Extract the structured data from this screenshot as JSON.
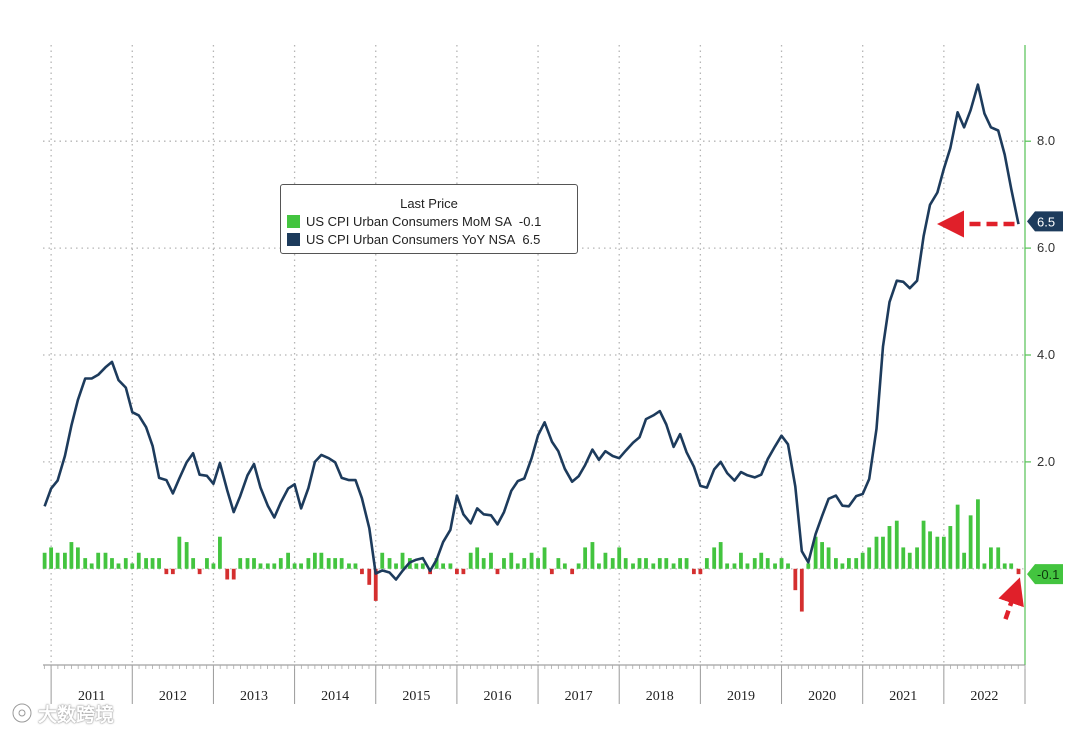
{
  "chart_data": {
    "type": "bar+line",
    "title": "",
    "legend": {
      "title": "Last Price",
      "position": "top-center",
      "entries": [
        {
          "name": "US CPI Urban Consumers MoM SA",
          "last_value": "-0.1",
          "color": "#43c43f",
          "type": "bar"
        },
        {
          "name": "US CPI Urban Consumers YoY NSA",
          "last_value": "6.5",
          "color": "#1d3b5c",
          "type": "line"
        }
      ]
    },
    "x_axis": {
      "start": 2010.9,
      "end": 2023.0,
      "year_labels": [
        "2011",
        "2012",
        "2013",
        "2014",
        "2015",
        "2016",
        "2017",
        "2018",
        "2019",
        "2020",
        "2021",
        "2022"
      ]
    },
    "y_axis": {
      "position": "right",
      "range": [
        -1.8,
        9.8
      ],
      "ticks": [
        2.0,
        4.0,
        6.0,
        8.0
      ],
      "tick_labels": [
        "2.0",
        "4.0",
        "6.0",
        "8.0"
      ],
      "grid": "dotted"
    },
    "series": [
      {
        "name": "US CPI Urban Consumers YoY NSA",
        "type": "line",
        "color": "#1d3b5c",
        "x": [
          2010.92,
          2011.0,
          2011.08,
          2011.17,
          2011.25,
          2011.33,
          2011.42,
          2011.5,
          2011.58,
          2011.67,
          2011.75,
          2011.83,
          2011.92,
          2012.0,
          2012.08,
          2012.17,
          2012.25,
          2012.33,
          2012.42,
          2012.5,
          2012.58,
          2012.67,
          2012.75,
          2012.83,
          2012.92,
          2013.0,
          2013.08,
          2013.17,
          2013.25,
          2013.33,
          2013.42,
          2013.5,
          2013.58,
          2013.67,
          2013.75,
          2013.83,
          2013.92,
          2014.0,
          2014.08,
          2014.17,
          2014.25,
          2014.33,
          2014.42,
          2014.5,
          2014.58,
          2014.67,
          2014.75,
          2014.83,
          2014.92,
          2015.0,
          2015.08,
          2015.17,
          2015.25,
          2015.33,
          2015.42,
          2015.5,
          2015.58,
          2015.67,
          2015.75,
          2015.83,
          2015.92,
          2016.0,
          2016.08,
          2016.17,
          2016.25,
          2016.33,
          2016.42,
          2016.5,
          2016.58,
          2016.67,
          2016.75,
          2016.83,
          2016.92,
          2017.0,
          2017.08,
          2017.17,
          2017.25,
          2017.33,
          2017.42,
          2017.5,
          2017.58,
          2017.67,
          2017.75,
          2017.83,
          2017.92,
          2018.0,
          2018.08,
          2018.17,
          2018.25,
          2018.33,
          2018.42,
          2018.5,
          2018.58,
          2018.67,
          2018.75,
          2018.83,
          2018.92,
          2019.0,
          2019.08,
          2019.17,
          2019.25,
          2019.33,
          2019.42,
          2019.5,
          2019.58,
          2019.67,
          2019.75,
          2019.83,
          2019.92,
          2020.0,
          2020.08,
          2020.17,
          2020.25,
          2020.33,
          2020.42,
          2020.5,
          2020.58,
          2020.67,
          2020.75,
          2020.83,
          2020.92,
          2021.0,
          2021.08,
          2021.17,
          2021.25,
          2021.33,
          2021.42,
          2021.5,
          2021.58,
          2021.67,
          2021.75,
          2021.83,
          2021.92,
          2022.0,
          2022.08,
          2022.17,
          2022.25,
          2022.33,
          2022.42,
          2022.5,
          2022.58,
          2022.67,
          2022.75,
          2022.83,
          2022.92
        ],
        "values": [
          1.17,
          1.5,
          1.65,
          2.11,
          2.68,
          3.16,
          3.56,
          3.56,
          3.63,
          3.77,
          3.87,
          3.53,
          3.39,
          2.93,
          2.87,
          2.65,
          2.3,
          1.7,
          1.66,
          1.41,
          1.69,
          1.99,
          2.16,
          1.76,
          1.74,
          1.59,
          1.98,
          1.47,
          1.06,
          1.36,
          1.75,
          1.96,
          1.52,
          1.18,
          0.96,
          1.24,
          1.5,
          1.58,
          1.13,
          1.51,
          2.0,
          2.13,
          2.07,
          1.99,
          1.7,
          1.66,
          1.66,
          1.32,
          0.76,
          -0.09,
          -0.03,
          -0.07,
          -0.2,
          -0.04,
          0.12,
          0.17,
          0.2,
          -0.04,
          0.17,
          0.5,
          0.73,
          1.37,
          1.02,
          0.85,
          1.13,
          1.02,
          1.0,
          0.83,
          1.06,
          1.46,
          1.64,
          1.69,
          2.07,
          2.5,
          2.74,
          2.38,
          2.2,
          1.87,
          1.63,
          1.73,
          1.94,
          2.23,
          2.04,
          2.2,
          2.11,
          2.07,
          2.21,
          2.36,
          2.46,
          2.8,
          2.87,
          2.95,
          2.7,
          2.28,
          2.52,
          2.18,
          1.91,
          1.55,
          1.52,
          1.86,
          2.0,
          1.79,
          1.65,
          1.81,
          1.75,
          1.71,
          1.76,
          2.05,
          2.29,
          2.49,
          2.33,
          1.54,
          0.33,
          0.12,
          0.65,
          0.99,
          1.31,
          1.37,
          1.18,
          1.17,
          1.36,
          1.4,
          1.68,
          2.62,
          4.16,
          4.99,
          5.39,
          5.37,
          5.25,
          5.39,
          6.22,
          6.81,
          7.04,
          7.48,
          7.87,
          8.54,
          8.26,
          8.58,
          9.06,
          8.52,
          8.26,
          8.2,
          7.75,
          7.11,
          6.45
        ]
      },
      {
        "name": "US CPI Urban Consumers MoM SA",
        "type": "bar",
        "color_positive": "#43c43f",
        "color_negative": "#d42f2f",
        "x": [
          2010.92,
          2011.0,
          2011.08,
          2011.17,
          2011.25,
          2011.33,
          2011.42,
          2011.5,
          2011.58,
          2011.67,
          2011.75,
          2011.83,
          2011.92,
          2012.0,
          2012.08,
          2012.17,
          2012.25,
          2012.33,
          2012.42,
          2012.5,
          2012.58,
          2012.67,
          2012.75,
          2012.83,
          2012.92,
          2013.0,
          2013.08,
          2013.17,
          2013.25,
          2013.33,
          2013.42,
          2013.5,
          2013.58,
          2013.67,
          2013.75,
          2013.83,
          2013.92,
          2014.0,
          2014.08,
          2014.17,
          2014.25,
          2014.33,
          2014.42,
          2014.5,
          2014.58,
          2014.67,
          2014.75,
          2014.83,
          2014.92,
          2015.0,
          2015.08,
          2015.17,
          2015.25,
          2015.33,
          2015.42,
          2015.5,
          2015.58,
          2015.67,
          2015.75,
          2015.83,
          2015.92,
          2016.0,
          2016.08,
          2016.17,
          2016.25,
          2016.33,
          2016.42,
          2016.5,
          2016.58,
          2016.67,
          2016.75,
          2016.83,
          2016.92,
          2017.0,
          2017.08,
          2017.17,
          2017.25,
          2017.33,
          2017.42,
          2017.5,
          2017.58,
          2017.67,
          2017.75,
          2017.83,
          2017.92,
          2018.0,
          2018.08,
          2018.17,
          2018.25,
          2018.33,
          2018.42,
          2018.5,
          2018.58,
          2018.67,
          2018.75,
          2018.83,
          2018.92,
          2019.0,
          2019.08,
          2019.17,
          2019.25,
          2019.33,
          2019.42,
          2019.5,
          2019.58,
          2019.67,
          2019.75,
          2019.83,
          2019.92,
          2020.0,
          2020.08,
          2020.17,
          2020.25,
          2020.33,
          2020.42,
          2020.5,
          2020.58,
          2020.67,
          2020.75,
          2020.83,
          2020.92,
          2021.0,
          2021.08,
          2021.17,
          2021.25,
          2021.33,
          2021.42,
          2021.5,
          2021.58,
          2021.67,
          2021.75,
          2021.83,
          2021.92,
          2022.0,
          2022.08,
          2022.17,
          2022.25,
          2022.33,
          2022.42,
          2022.5,
          2022.58,
          2022.67,
          2022.75,
          2022.83,
          2022.92
        ],
        "values": [
          0.3,
          0.4,
          0.3,
          0.3,
          0.5,
          0.4,
          0.2,
          0.1,
          0.3,
          0.3,
          0.2,
          0.1,
          0.2,
          0.1,
          0.3,
          0.2,
          0.2,
          0.2,
          -0.1,
          -0.1,
          0.6,
          0.5,
          0.2,
          -0.1,
          0.2,
          0.1,
          0.6,
          -0.2,
          -0.2,
          0.2,
          0.2,
          0.2,
          0.1,
          0.1,
          0.1,
          0.2,
          0.3,
          0.1,
          0.1,
          0.2,
          0.3,
          0.3,
          0.2,
          0.2,
          0.2,
          0.1,
          0.1,
          -0.1,
          -0.3,
          -0.6,
          0.3,
          0.2,
          0.1,
          0.3,
          0.2,
          0.1,
          0.1,
          -0.1,
          0.2,
          0.1,
          0.1,
          -0.1,
          -0.1,
          0.3,
          0.4,
          0.2,
          0.3,
          -0.1,
          0.2,
          0.3,
          0.1,
          0.2,
          0.3,
          0.2,
          0.4,
          -0.1,
          0.2,
          0.1,
          -0.1,
          0.1,
          0.4,
          0.5,
          0.1,
          0.3,
          0.2,
          0.4,
          0.2,
          0.1,
          0.2,
          0.2,
          0.1,
          0.2,
          0.2,
          0.1,
          0.2,
          0.2,
          -0.1,
          -0.1,
          0.2,
          0.4,
          0.5,
          0.1,
          0.1,
          0.3,
          0.1,
          0.2,
          0.3,
          0.2,
          0.1,
          0.2,
          0.1,
          -0.4,
          -0.8,
          0.1,
          0.6,
          0.5,
          0.4,
          0.2,
          0.1,
          0.2,
          0.2,
          0.3,
          0.4,
          0.6,
          0.6,
          0.8,
          0.9,
          0.4,
          0.3,
          0.4,
          0.9,
          0.7,
          0.6,
          0.6,
          0.8,
          1.2,
          0.3,
          1.0,
          1.3,
          0.1,
          0.4,
          0.4,
          0.1,
          0.1,
          -0.1
        ]
      }
    ],
    "last_labels": [
      {
        "series": "US CPI Urban Consumers YoY NSA",
        "text": "6.5",
        "value": 6.5,
        "color": "#1d3b5c"
      },
      {
        "series": "US CPI Urban Consumers MoM SA",
        "text": "-0.1",
        "value": -0.1,
        "color": "#43c43f"
      }
    ],
    "annotations": [
      {
        "type": "dashed-arrow",
        "color": "#e0202a",
        "points_to": "YoY last value 6.5"
      },
      {
        "type": "dashed-arrow",
        "color": "#e0202a",
        "points_to": "MoM last value -0.1"
      }
    ]
  },
  "watermark": {
    "text": "大数跨境"
  }
}
